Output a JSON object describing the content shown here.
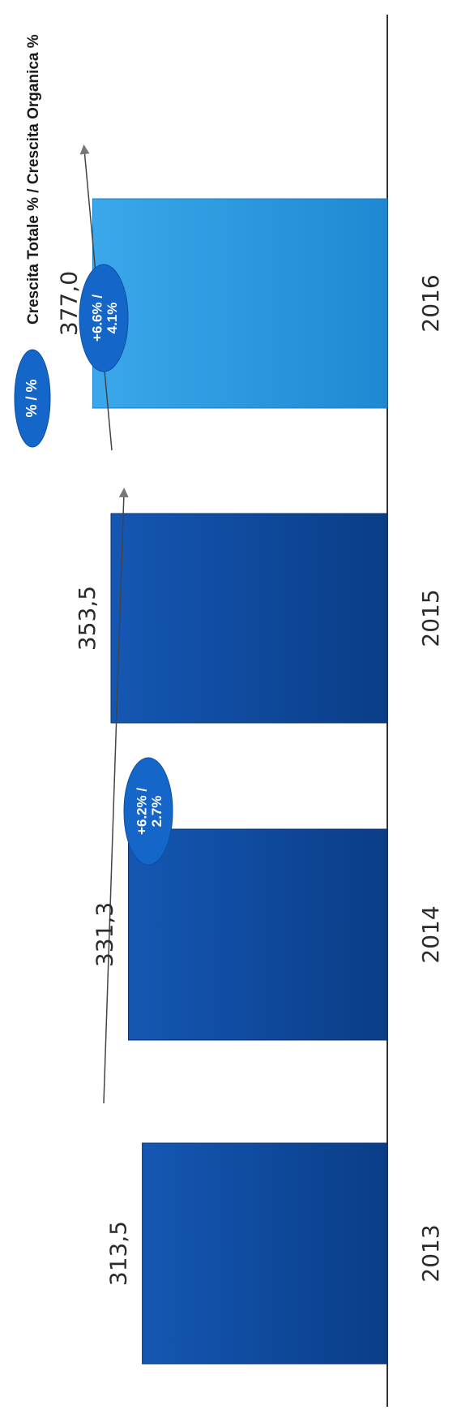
{
  "chart_data": {
    "type": "bar",
    "orientation": "rotated-90",
    "categories": [
      "2013",
      "2014",
      "2015",
      "2016"
    ],
    "values": [
      313.5,
      331.3,
      353.5,
      377.0
    ],
    "value_labels": [
      "313,5",
      "331,3",
      "353,5",
      "377,0"
    ],
    "bar_colors": [
      "#0d4a9e",
      "#0d4a9e",
      "#0d4a9e",
      "#2f9be0"
    ],
    "grid": false,
    "legend": {
      "placement": "top",
      "symbol_text": "% / %",
      "label": "Crescita Totale % / Crescita Organica %",
      "color": "#1466c8"
    },
    "annotations": [
      {
        "from": "2013",
        "to": "2015",
        "line1": "+6.2% /",
        "line2": "2.7%"
      },
      {
        "from": "2015",
        "to": "2016",
        "line1": "+6.6% /",
        "line2": "4.1%"
      }
    ]
  }
}
